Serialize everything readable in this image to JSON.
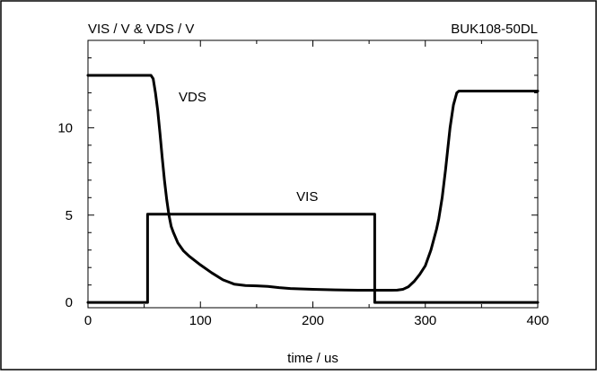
{
  "chart_data": {
    "type": "line",
    "title_left": "VIS / V & VDS / V",
    "title_right": "BUK108-50DL",
    "xlabel": "time / us",
    "ylabel": "",
    "xlim": [
      0,
      400
    ],
    "ylim": [
      -0.3,
      15
    ],
    "x_ticks": [
      0,
      100,
      200,
      300,
      400
    ],
    "y_ticks": [
      0,
      5,
      10
    ],
    "grid": false,
    "series": [
      {
        "name": "VDS",
        "x": [
          0,
          5,
          20,
          40,
          56,
          58,
          60,
          62,
          64,
          66,
          68,
          70,
          72,
          74,
          76,
          78,
          80,
          85,
          90,
          95,
          100,
          110,
          120,
          130,
          140,
          150,
          160,
          170,
          180,
          200,
          220,
          240,
          260,
          270,
          275,
          280,
          285,
          290,
          295,
          300,
          305,
          310,
          312,
          315,
          318,
          320,
          322,
          325,
          328,
          330,
          335,
          350,
          370,
          400
        ],
        "y": [
          13.0,
          13.0,
          13.0,
          13.0,
          13.0,
          12.8,
          12.0,
          11.0,
          9.7,
          8.3,
          7.0,
          5.9,
          5.0,
          4.35,
          4.0,
          3.7,
          3.4,
          2.95,
          2.65,
          2.4,
          2.15,
          1.7,
          1.3,
          1.05,
          0.97,
          0.95,
          0.92,
          0.85,
          0.8,
          0.75,
          0.72,
          0.7,
          0.7,
          0.7,
          0.71,
          0.75,
          0.9,
          1.2,
          1.6,
          2.1,
          3.0,
          4.2,
          4.8,
          6.0,
          7.6,
          8.8,
          10.0,
          11.3,
          12.0,
          12.1,
          12.1,
          12.1,
          12.1,
          12.1
        ]
      },
      {
        "name": "VIS",
        "x": [
          0,
          53,
          53,
          255,
          255,
          400
        ],
        "y": [
          0,
          0,
          5.05,
          5.05,
          0,
          0
        ]
      }
    ],
    "annotations": [
      {
        "text": "VDS",
        "x": 93,
        "y": 11.5,
        "color": "#000000"
      },
      {
        "text": "VIS",
        "x": 195,
        "y": 5.8,
        "color": "#000000"
      }
    ],
    "colors": {
      "line": "#000000",
      "axis": "#000000",
      "background": "#ffffff"
    }
  }
}
